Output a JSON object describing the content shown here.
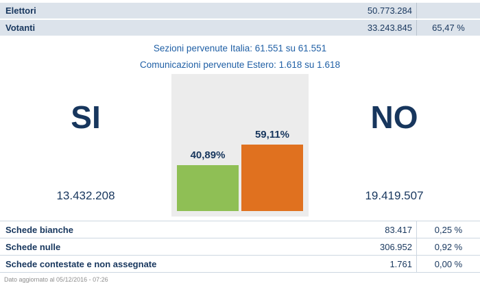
{
  "summary": {
    "rows": [
      {
        "label": "Elettori",
        "value": "50.773.284",
        "percent": ""
      },
      {
        "label": "Votanti",
        "value": "33.243.845",
        "percent": "65,47 %"
      }
    ]
  },
  "info": {
    "sezioni": "Sezioni pervenute Italia: 61.551 su 61.551",
    "estero": "Comunicazioni pervenute Estero: 1.618 su 1.618"
  },
  "results": {
    "si": {
      "label": "SI",
      "votes": "13.432.208",
      "percent": "40,89%"
    },
    "no": {
      "label": "NO",
      "votes": "19.419.507",
      "percent": "59,11%"
    }
  },
  "chart_data": {
    "type": "bar",
    "categories": [
      "SI",
      "NO"
    ],
    "values": [
      40.89,
      59.11
    ],
    "value_labels": [
      "40,89%",
      "59,11%"
    ],
    "colors": [
      "#8fbf55",
      "#e0711f"
    ],
    "title": "",
    "xlabel": "",
    "ylabel": "",
    "ylim": [
      0,
      60
    ],
    "grid": false,
    "legend": false
  },
  "ballots": {
    "rows": [
      {
        "label": "Schede bianche",
        "value": "83.417",
        "percent": "0,25 %"
      },
      {
        "label": "Schede nulle",
        "value": "306.952",
        "percent": "0,92 %"
      },
      {
        "label": "Schede contestate e non assegnate",
        "value": "1.761",
        "percent": "0,00 %"
      }
    ]
  },
  "footer": {
    "updated": "Dato aggiornato al 05/12/2016 - 07:26"
  },
  "colors": {
    "navy": "#17365d",
    "green": "#8fbf55",
    "orange": "#e0711f",
    "row_bg": "#dce3eb",
    "info_blue": "#1f5fa5",
    "chart_bg": "#ececec"
  }
}
